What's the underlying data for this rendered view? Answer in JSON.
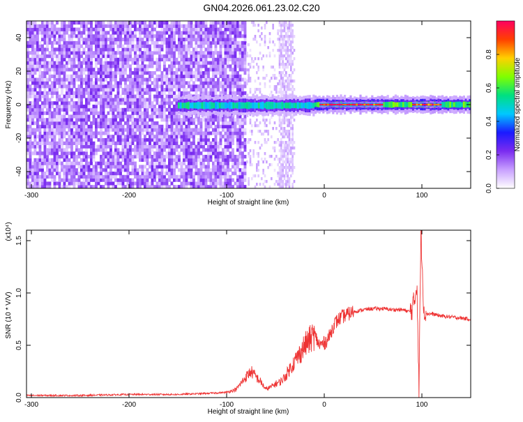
{
  "title": "GN04.2026.061.23.02.C20",
  "colors": {
    "snr_line": "#ee3333",
    "colorbar": [
      "#ffffff",
      "#c8a0ff",
      "#7b2cf0",
      "#1a1aff",
      "#00c8ff",
      "#00e080",
      "#80ff00",
      "#ffd000",
      "#ff4000",
      "#ff0060"
    ]
  },
  "chart_data": [
    {
      "type": "heatmap",
      "xlabel": "Height of straight line (km)",
      "ylabel": "Frequency (Hz)",
      "xlim": [
        -305,
        150
      ],
      "ylim": [
        -50,
        50
      ],
      "xticks": [
        -300,
        -200,
        -100,
        0,
        100
      ],
      "yticks": [
        -40,
        -20,
        0,
        20,
        40
      ],
      "colorbar": {
        "label": "Normalized spectral amplitude",
        "range": [
          0,
          1
        ],
        "ticks": [
          "0.0",
          "0.2",
          "0.4",
          "0.6",
          "0.8"
        ],
        "tick_values": [
          0.0,
          0.2,
          0.4,
          0.6,
          0.8
        ]
      },
      "regions": [
        {
          "desc": "noise",
          "x": [
            -305,
            -80
          ],
          "y": [
            -50,
            50
          ],
          "amplitude": 0.2
        },
        {
          "desc": "sparse noise",
          "x": [
            -80,
            -30
          ],
          "y": [
            -50,
            50
          ],
          "amplitude": 0.1
        },
        {
          "desc": "signal band",
          "x": [
            -150,
            -10
          ],
          "y": [
            -4,
            3
          ],
          "amplitude": 0.5
        },
        {
          "desc": "signal band",
          "x": [
            -10,
            150
          ],
          "y": [
            -3,
            3
          ],
          "amplitude": 0.6
        },
        {
          "desc": "peak",
          "x": [
            -5,
            60
          ],
          "y": [
            -1,
            1
          ],
          "amplitude": 0.95
        },
        {
          "desc": "peak",
          "x": [
            90,
            120
          ],
          "y": [
            -1,
            1
          ],
          "amplitude": 0.9
        }
      ]
    },
    {
      "type": "line",
      "xlabel": "Height of straight line (km)",
      "ylabel": "SNR (10 * V/V)",
      "scale_label": "(x10⁴)",
      "xlim": [
        -305,
        150
      ],
      "ylim": [
        0,
        1.6
      ],
      "xticks": [
        -300,
        -200,
        -100,
        0,
        100
      ],
      "yticks": [
        0.0,
        0.5,
        1.0,
        1.5
      ],
      "ytick_labels": [
        "0.0",
        "0.5",
        "1.0",
        "1.5"
      ],
      "series": [
        {
          "x": [
            -305,
            -250,
            -200,
            -150,
            -120,
            -100,
            -90,
            -80,
            -75,
            -70,
            -65,
            -60,
            -55,
            -50,
            -45,
            -40,
            -35,
            -30,
            -25,
            -20,
            -15,
            -10,
            -5,
            0,
            5,
            10,
            15,
            20,
            25,
            30,
            40,
            50,
            60,
            70,
            80,
            88,
            92,
            95,
            97,
            99,
            102,
            105,
            110,
            120,
            130,
            140,
            150
          ],
          "y": [
            0.02,
            0.02,
            0.03,
            0.03,
            0.04,
            0.05,
            0.08,
            0.2,
            0.25,
            0.2,
            0.15,
            0.08,
            0.1,
            0.13,
            0.15,
            0.2,
            0.28,
            0.35,
            0.42,
            0.5,
            0.55,
            0.6,
            0.5,
            0.52,
            0.58,
            0.7,
            0.75,
            0.78,
            0.8,
            0.82,
            0.84,
            0.85,
            0.85,
            0.84,
            0.84,
            0.82,
            0.9,
            1.1,
            0.05,
            1.6,
            0.85,
            0.8,
            0.8,
            0.78,
            0.77,
            0.76,
            0.75
          ]
        }
      ]
    }
  ]
}
